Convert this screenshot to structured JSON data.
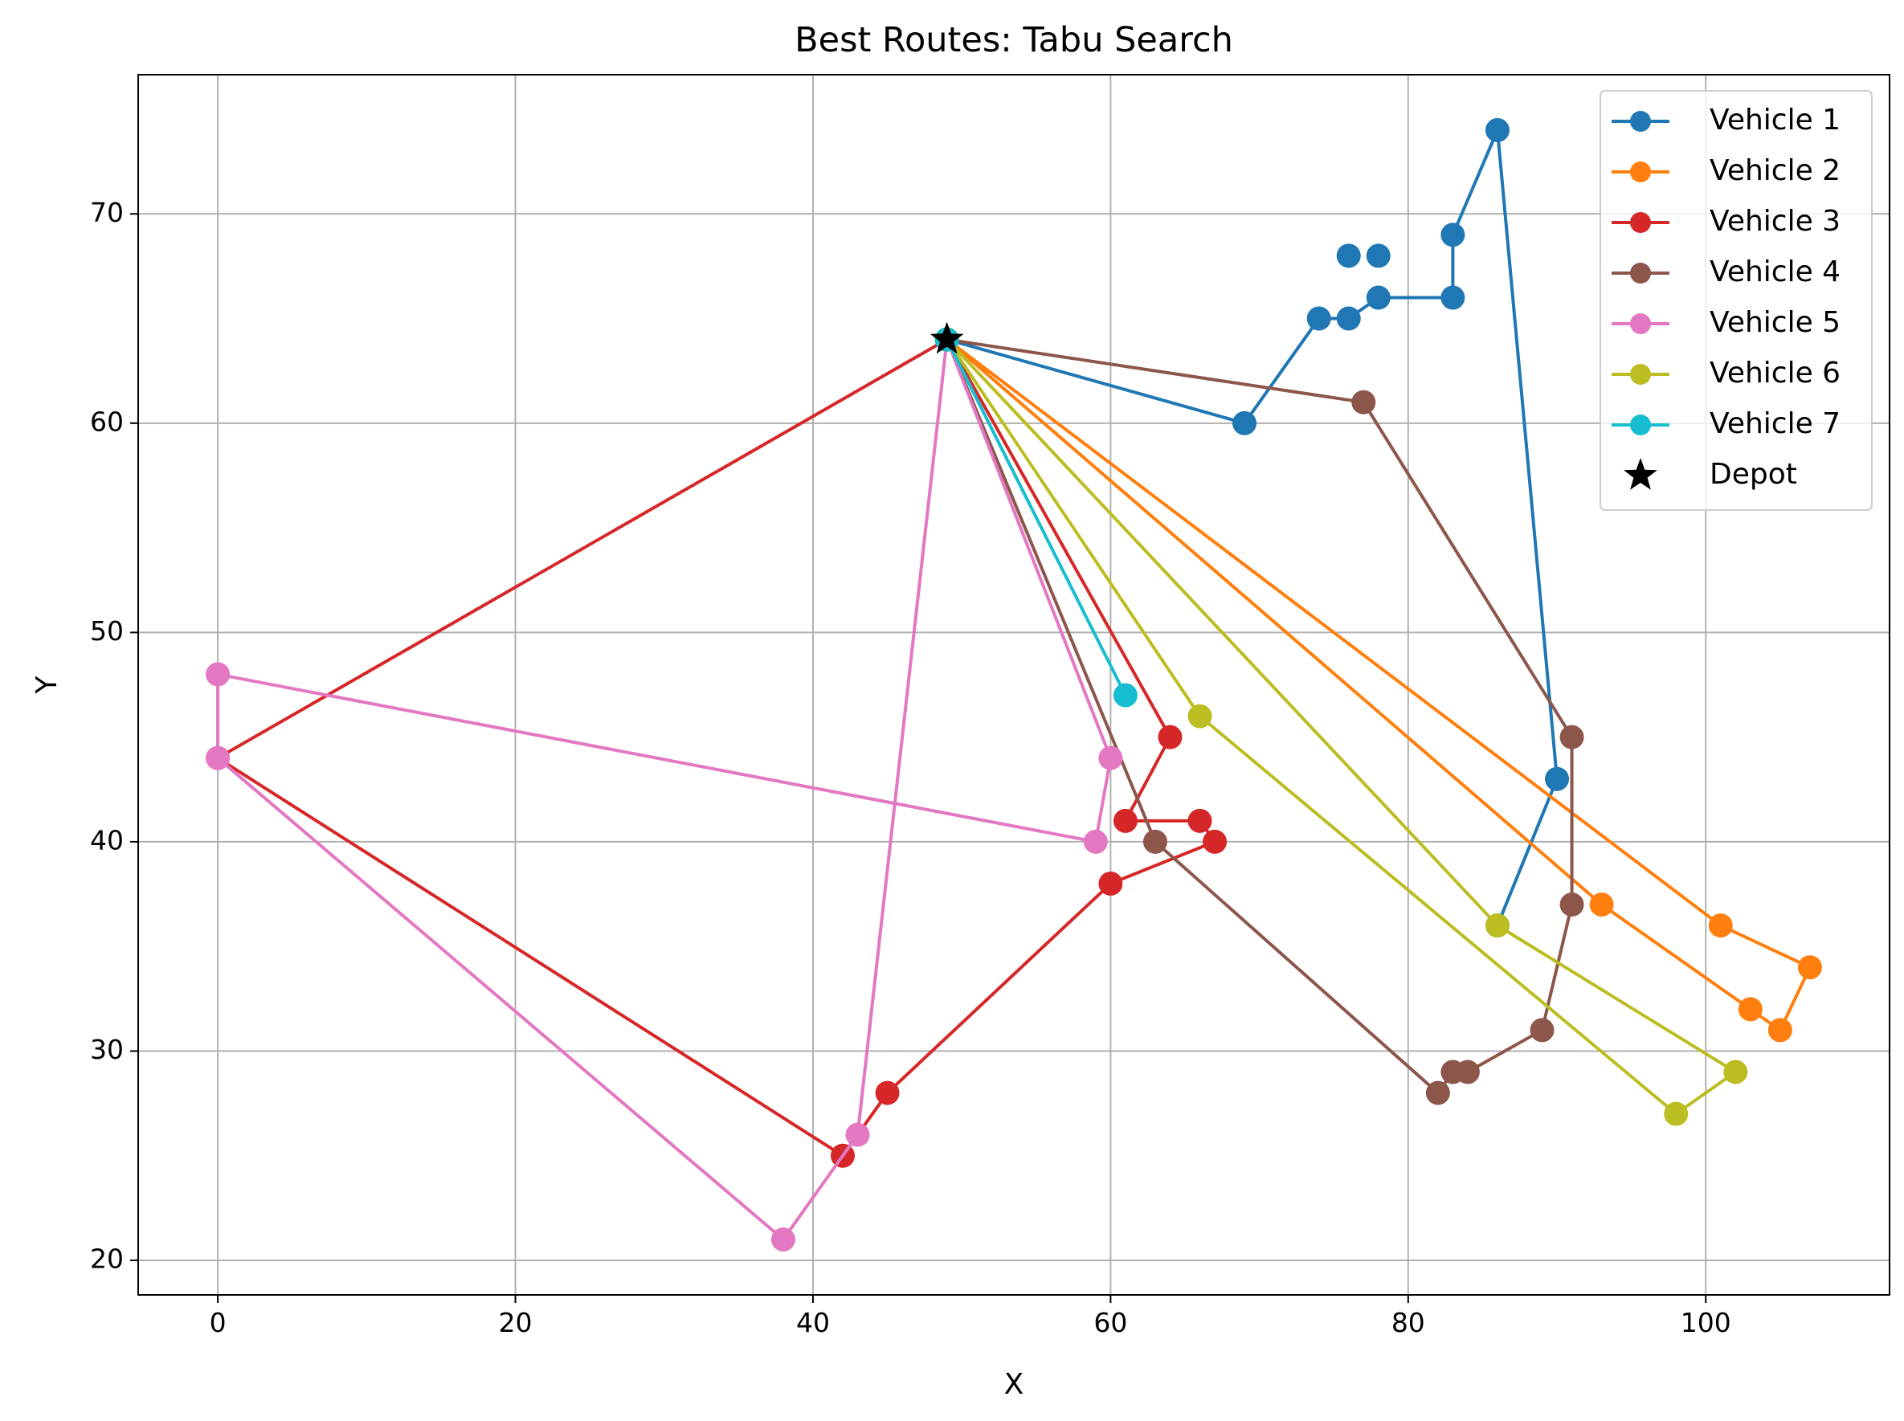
{
  "chart_data": {
    "type": "line",
    "title": "Best Routes: Tabu Search",
    "xlabel": "X",
    "ylabel": "Y",
    "xlim": [
      -5.35,
      112.35
    ],
    "ylim": [
      18.35,
      76.65
    ],
    "xticks": [
      0,
      20,
      40,
      60,
      80,
      100
    ],
    "yticks": [
      20,
      30,
      40,
      50,
      60,
      70
    ],
    "grid": true,
    "legend_position": "top-right",
    "depot": {
      "name": "Depot",
      "x": 49,
      "y": 64,
      "marker": "star",
      "color": "#000000"
    },
    "series": [
      {
        "name": "Vehicle 1",
        "color": "#1f77b4",
        "x": [
          49,
          69,
          74,
          76,
          78,
          83,
          83,
          86,
          90,
          86
        ],
        "y": [
          64,
          60,
          65,
          65,
          66,
          66,
          69,
          74,
          43,
          36
        ]
      },
      {
        "name": "Vehicle 2",
        "color": "#ff7f0e",
        "x": [
          49,
          101,
          107,
          105,
          103,
          93,
          49
        ],
        "y": [
          64,
          36,
          34,
          31,
          32,
          37,
          64
        ]
      },
      {
        "name": "Vehicle 3",
        "color": "#d62728",
        "x": [
          49,
          64,
          61,
          66,
          67,
          60,
          45,
          42,
          0,
          49
        ],
        "y": [
          64,
          45,
          41,
          41,
          40,
          38,
          28,
          25,
          44,
          64
        ]
      },
      {
        "name": "Vehicle 4",
        "color": "#8c564b",
        "x": [
          49,
          77,
          91,
          91,
          89,
          84,
          83,
          82,
          63,
          49
        ],
        "y": [
          64,
          61,
          45,
          37,
          31,
          29,
          29,
          28,
          40,
          64
        ]
      },
      {
        "name": "Vehicle 5",
        "color": "#e377c2",
        "x": [
          49,
          60,
          59,
          0,
          0,
          38,
          43,
          49
        ],
        "y": [
          64,
          44,
          40,
          48,
          44,
          21,
          26,
          64
        ]
      },
      {
        "name": "Vehicle 6",
        "color": "#bcbd22",
        "x": [
          49,
          86,
          102,
          98,
          66,
          49
        ],
        "y": [
          64,
          36,
          29,
          27,
          46,
          64
        ]
      },
      {
        "name": "Vehicle 7",
        "color": "#17becf",
        "x": [
          49,
          61,
          49
        ],
        "y": [
          64,
          47,
          64
        ]
      }
    ],
    "extra_points": [
      {
        "series": "Vehicle 1",
        "x": 76,
        "y": 68
      },
      {
        "series": "Vehicle 1",
        "x": 78,
        "y": 68
      }
    ]
  }
}
